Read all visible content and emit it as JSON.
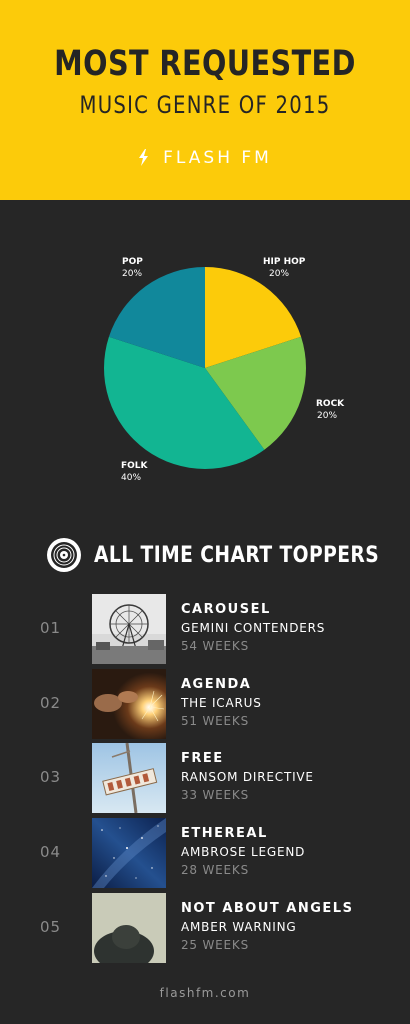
{
  "header": {
    "title_line1": "MOST REQUESTED",
    "title_line2": "MUSIC GENRE OF 2015",
    "brand": "FLASH FM",
    "bg_color": "#fccb0a"
  },
  "chart_data": {
    "type": "pie",
    "slices": [
      {
        "label": "HIP HOP",
        "percent_label": "20%",
        "value": 20,
        "color": "#fccb0a"
      },
      {
        "label": "ROCK",
        "percent_label": "20%",
        "value": 20,
        "color": "#7dc94e"
      },
      {
        "label": "FOLK",
        "percent_label": "40%",
        "value": 40,
        "color": "#12b592"
      },
      {
        "label": "POP",
        "percent_label": "20%",
        "value": 20,
        "color": "#11889b"
      }
    ]
  },
  "toppers": {
    "heading": "ALL TIME CHART TOPPERS",
    "items": [
      {
        "rank": "01",
        "song": "CAROUSEL",
        "artist": "GEMINI CONTENDERS",
        "weeks": "54 WEEKS"
      },
      {
        "rank": "02",
        "song": "AGENDA",
        "artist": "THE ICARUS",
        "weeks": "51 WEEKS"
      },
      {
        "rank": "03",
        "song": "FREE",
        "artist": "RANSOM DIRECTIVE",
        "weeks": "33 WEEKS"
      },
      {
        "rank": "04",
        "song": "ETHEREAL",
        "artist": "AMBROSE LEGEND",
        "weeks": "28 WEEKS"
      },
      {
        "rank": "05",
        "song": "NOT ABOUT ANGELS",
        "artist": "AMBER WARNING",
        "weeks": "25 WEEKS"
      }
    ]
  },
  "footer": {
    "url": "flashfm.com"
  }
}
